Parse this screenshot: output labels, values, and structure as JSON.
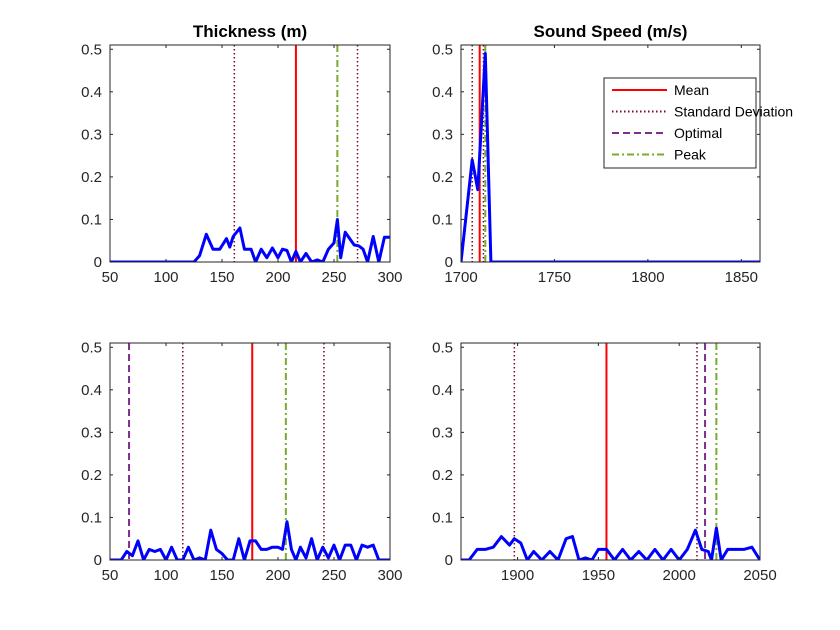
{
  "colors": {
    "data": "#0000ff",
    "mean": "#ff0000",
    "std": "#7a0a1e",
    "optimal": "#7e2f8e",
    "peak": "#77ac30",
    "axis": "#262626"
  },
  "legend": {
    "placement": "top-right of Sound Speed (m/s) top panel",
    "entries": [
      {
        "key": "mean",
        "label": "Mean"
      },
      {
        "key": "std",
        "label": "Standard Deviation"
      },
      {
        "key": "optimal",
        "label": "Optimal"
      },
      {
        "key": "peak",
        "label": "Peak"
      }
    ]
  },
  "chart_data": [
    {
      "type": "line",
      "title": "Thickness (m)",
      "xlabel": "",
      "ylabel": "",
      "xlim": [
        50,
        300
      ],
      "ylim": [
        0,
        0.51
      ],
      "xticks": [
        50,
        100,
        150,
        200,
        250,
        300
      ],
      "yticks": [
        0,
        0.1,
        0.2,
        0.3,
        0.4,
        0.5
      ],
      "ytick_labels": [
        "0",
        "0.1",
        "0.2",
        "0.3",
        "0.4",
        "0.5"
      ],
      "series": [
        {
          "name": "distribution",
          "x": [
            50,
            125,
            130,
            136,
            142,
            148,
            154,
            157,
            160,
            166,
            170,
            176,
            180,
            185,
            190,
            195,
            200,
            204,
            208,
            212,
            216,
            220,
            225,
            230,
            235,
            240,
            245,
            250,
            253,
            256,
            260,
            264,
            268,
            272,
            276,
            280,
            285,
            290,
            295,
            300
          ],
          "y": [
            0,
            0,
            0.015,
            0.065,
            0.03,
            0.03,
            0.055,
            0.035,
            0.06,
            0.08,
            0.03,
            0.03,
            0,
            0.03,
            0.01,
            0.033,
            0.01,
            0.03,
            0.027,
            0,
            0.025,
            0,
            0.02,
            0,
            0.005,
            0,
            0.03,
            0.045,
            0.1,
            0.01,
            0.07,
            0.055,
            0.04,
            0.038,
            0.03,
            0,
            0.06,
            0,
            0.058,
            0.058
          ]
        }
      ],
      "vlines": [
        {
          "key": "std",
          "x": 161
        },
        {
          "key": "mean",
          "x": 216
        },
        {
          "key": "peak",
          "x": 253
        },
        {
          "key": "std",
          "x": 271
        }
      ]
    },
    {
      "type": "line",
      "title": "Sound Speed (m/s)",
      "xlabel": "",
      "ylabel": "",
      "xlim": [
        1700,
        1860
      ],
      "ylim": [
        0,
        0.51
      ],
      "xticks": [
        1700,
        1750,
        1800,
        1850
      ],
      "yticks": [
        0,
        0.1,
        0.2,
        0.3,
        0.4,
        0.5
      ],
      "ytick_labels": [
        "0",
        "0.1",
        "0.2",
        "0.3",
        "0.4",
        "0.5"
      ],
      "series": [
        {
          "name": "distribution",
          "x": [
            1700,
            1706,
            1709,
            1713,
            1716,
            1860
          ],
          "y": [
            0,
            0.24,
            0.17,
            0.49,
            0,
            0
          ]
        }
      ],
      "vlines": [
        {
          "key": "std",
          "x": 1706
        },
        {
          "key": "mean",
          "x": 1710
        },
        {
          "key": "std",
          "x": 1712
        },
        {
          "key": "peak",
          "x": 1713
        }
      ]
    },
    {
      "type": "line",
      "title": "",
      "xlabel": "",
      "ylabel": "",
      "xlim": [
        50,
        300
      ],
      "ylim": [
        0,
        0.51
      ],
      "xticks": [
        50,
        100,
        150,
        200,
        250,
        300
      ],
      "yticks": [
        0,
        0.1,
        0.2,
        0.3,
        0.4,
        0.5
      ],
      "ytick_labels": [
        "0",
        "0.1",
        "0.2",
        "0.3",
        "0.4",
        "0.5"
      ],
      "series": [
        {
          "name": "distribution",
          "x": [
            50,
            60,
            65,
            70,
            75,
            80,
            85,
            90,
            95,
            100,
            105,
            110,
            115,
            120,
            125,
            130,
            135,
            140,
            145,
            150,
            155,
            160,
            165,
            170,
            175,
            180,
            185,
            190,
            195,
            200,
            204,
            208,
            212,
            216,
            220,
            225,
            230,
            235,
            240,
            245,
            250,
            255,
            260,
            265,
            270,
            275,
            280,
            285,
            290,
            300
          ],
          "y": [
            0,
            0,
            0.02,
            0.01,
            0.045,
            0,
            0.025,
            0.02,
            0.025,
            0,
            0.03,
            0,
            0,
            0.03,
            0,
            0.005,
            0,
            0.07,
            0.025,
            0.015,
            0,
            0,
            0.05,
            0,
            0.045,
            0.045,
            0.025,
            0.025,
            0.03,
            0.03,
            0.025,
            0.09,
            0.025,
            0,
            0.03,
            0.005,
            0.05,
            0,
            0.03,
            0.005,
            0.035,
            0,
            0.035,
            0.035,
            0,
            0.035,
            0.03,
            0.035,
            0,
            0
          ]
        }
      ],
      "vlines": [
        {
          "key": "optimal",
          "x": 67
        },
        {
          "key": "std",
          "x": 115
        },
        {
          "key": "mean",
          "x": 177
        },
        {
          "key": "peak",
          "x": 207
        },
        {
          "key": "std",
          "x": 241
        }
      ]
    },
    {
      "type": "line",
      "title": "",
      "xlabel": "",
      "ylabel": "",
      "xlim": [
        1865,
        2050
      ],
      "ylim": [
        0,
        0.51
      ],
      "xticks": [
        1900,
        1950,
        2000,
        2050
      ],
      "yticks": [
        0,
        0.1,
        0.2,
        0.3,
        0.4,
        0.5
      ],
      "ytick_labels": [
        "0",
        "0.1",
        "0.2",
        "0.3",
        "0.4",
        "0.5"
      ],
      "series": [
        {
          "name": "distribution",
          "x": [
            1865,
            1870,
            1875,
            1880,
            1885,
            1890,
            1895,
            1898,
            1902,
            1906,
            1910,
            1915,
            1920,
            1925,
            1930,
            1934,
            1938,
            1942,
            1946,
            1950,
            1955,
            1960,
            1965,
            1970,
            1975,
            1980,
            1985,
            1990,
            1995,
            2000,
            2005,
            2010,
            2014,
            2018,
            2020,
            2023,
            2026,
            2030,
            2035,
            2040,
            2045,
            2050
          ],
          "y": [
            0,
            0,
            0.025,
            0.025,
            0.03,
            0.055,
            0.035,
            0.05,
            0.04,
            0,
            0.02,
            0,
            0.02,
            0,
            0.05,
            0.055,
            0,
            0.005,
            0,
            0.025,
            0.025,
            0,
            0.025,
            0,
            0.02,
            0,
            0.025,
            0,
            0.025,
            0,
            0.025,
            0.07,
            0.025,
            0.02,
            0,
            0.075,
            0,
            0.025,
            0.025,
            0.025,
            0.03,
            0
          ]
        }
      ],
      "vlines": [
        {
          "key": "std",
          "x": 1898
        },
        {
          "key": "mean",
          "x": 1955
        },
        {
          "key": "std",
          "x": 2011
        },
        {
          "key": "optimal",
          "x": 2016
        },
        {
          "key": "peak",
          "x": 2023
        }
      ]
    }
  ]
}
